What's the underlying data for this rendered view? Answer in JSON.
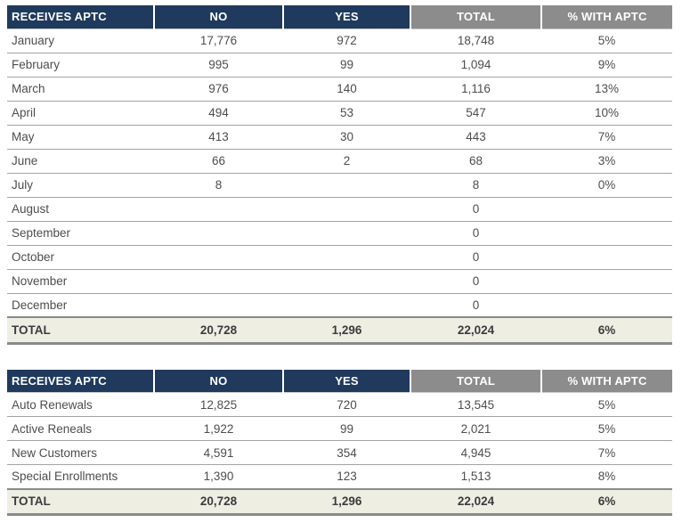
{
  "colors": {
    "header_navy": "#1f3a5c",
    "header_gray": "#8c8c8c",
    "header_text": "#ffffff",
    "body_text": "#4d4d4d",
    "total_row_bg": "#efeee3",
    "row_border": "#a3a3a3",
    "total_border": "#8a8a8a"
  },
  "tables": [
    {
      "headers": {
        "label": "RECEIVES APTC",
        "no": "NO",
        "yes": "YES",
        "total": "TOTAL",
        "pct": "% WITH APTC"
      },
      "rows": [
        {
          "label": "January",
          "no": "17,776",
          "yes": "972",
          "total": "18,748",
          "pct": "5%"
        },
        {
          "label": "February",
          "no": "995",
          "yes": "99",
          "total": "1,094",
          "pct": "9%"
        },
        {
          "label": "March",
          "no": "976",
          "yes": "140",
          "total": "1,116",
          "pct": "13%"
        },
        {
          "label": "April",
          "no": "494",
          "yes": "53",
          "total": "547",
          "pct": "10%"
        },
        {
          "label": "May",
          "no": "413",
          "yes": "30",
          "total": "443",
          "pct": "7%"
        },
        {
          "label": "June",
          "no": "66",
          "yes": "2",
          "total": "68",
          "pct": "3%"
        },
        {
          "label": "July",
          "no": "8",
          "yes": "",
          "total": "8",
          "pct": "0%"
        },
        {
          "label": "August",
          "no": "",
          "yes": "",
          "total": "0",
          "pct": ""
        },
        {
          "label": "September",
          "no": "",
          "yes": "",
          "total": "0",
          "pct": ""
        },
        {
          "label": "October",
          "no": "",
          "yes": "",
          "total": "0",
          "pct": ""
        },
        {
          "label": "November",
          "no": "",
          "yes": "",
          "total": "0",
          "pct": ""
        },
        {
          "label": "December",
          "no": "",
          "yes": "",
          "total": "0",
          "pct": ""
        }
      ],
      "total_row": {
        "label": "TOTAL",
        "no": "20,728",
        "yes": "1,296",
        "total": "22,024",
        "pct": "6%"
      }
    },
    {
      "headers": {
        "label": "RECEIVES APTC",
        "no": "NO",
        "yes": "YES",
        "total": "TOTAL",
        "pct": "% WITH APTC"
      },
      "rows": [
        {
          "label": "Auto Renewals",
          "no": "12,825",
          "yes": "720",
          "total": "13,545",
          "pct": "5%"
        },
        {
          "label": "Active Reneals",
          "no": "1,922",
          "yes": "99",
          "total": "2,021",
          "pct": "5%"
        },
        {
          "label": "New Customers",
          "no": "4,591",
          "yes": "354",
          "total": "4,945",
          "pct": "7%"
        },
        {
          "label": "Special Enrollments",
          "no": "1,390",
          "yes": "123",
          "total": "1,513",
          "pct": "8%"
        }
      ],
      "total_row": {
        "label": "TOTAL",
        "no": "20,728",
        "yes": "1,296",
        "total": "22,024",
        "pct": "6%"
      }
    }
  ]
}
